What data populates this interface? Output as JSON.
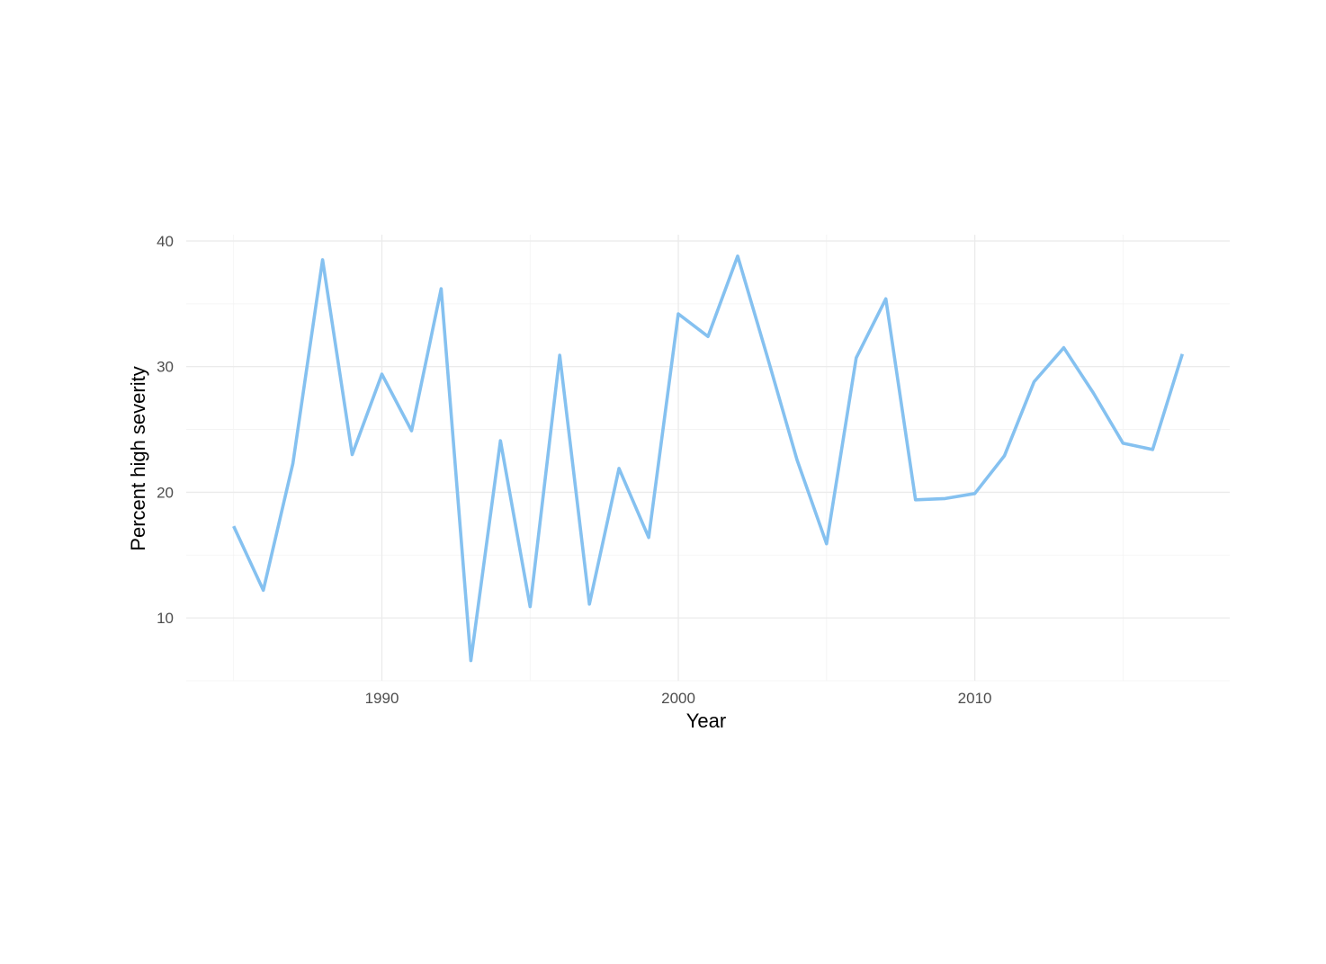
{
  "chart_data": {
    "type": "line",
    "title": "",
    "xlabel": "Year",
    "ylabel": "Percent high severity",
    "xlim": [
      1983.4,
      2018.6
    ],
    "ylim": [
      5.0,
      40.5
    ],
    "x_ticks": [
      1990,
      2000,
      2010
    ],
    "y_ticks": [
      10,
      20,
      30,
      40
    ],
    "grid": true,
    "legend": "none",
    "line_color": "#85C1F0",
    "series": [
      {
        "x": [
          1985,
          1986,
          1987,
          1988,
          1989,
          1990,
          1991,
          1992,
          1993,
          1994,
          1995,
          1996,
          1997,
          1998,
          1999,
          2000,
          2001,
          2002,
          2003,
          2004,
          2005,
          2006,
          2007,
          2008,
          2009,
          2010,
          2011,
          2012,
          2013,
          2014,
          2015,
          2016,
          2017
        ],
        "values": [
          17.3,
          12.2,
          22.3,
          38.5,
          23.0,
          29.4,
          24.9,
          36.2,
          6.6,
          24.1,
          10.9,
          30.9,
          11.1,
          21.9,
          16.4,
          34.2,
          32.4,
          38.8,
          30.8,
          22.6,
          15.9,
          30.7,
          35.4,
          19.4,
          19.5,
          19.9,
          22.9,
          28.8,
          31.5,
          27.9,
          23.9,
          23.4,
          31.0
        ]
      }
    ]
  }
}
